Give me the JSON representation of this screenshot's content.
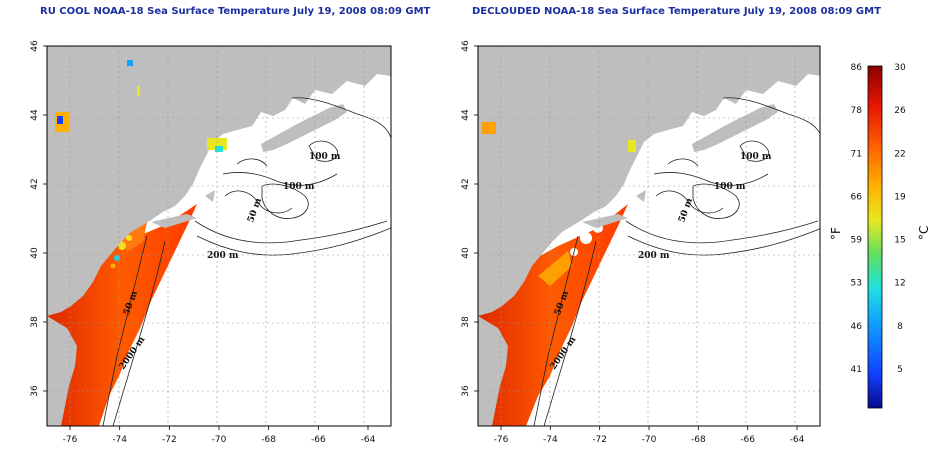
{
  "panels": [
    {
      "title": "RU COOL NOAA-18 Sea Surface Temperature July 19, 2008 08:09 GMT",
      "contour_labels": [
        "100 m",
        "100 m",
        "50 m",
        "200 m",
        "50 m",
        "2000 m"
      ]
    },
    {
      "title": "DECLOUDED NOAA-18 Sea Surface Temperature July 19, 2008 08:09 GMT",
      "contour_labels": [
        "100 m",
        "100 m",
        "50 m",
        "200 m",
        "50 m",
        "2000 m"
      ]
    }
  ],
  "axes": {
    "x_ticks": [
      "-76",
      "-74",
      "-72",
      "-70",
      "-68",
      "-66",
      "-64"
    ],
    "y_ticks": [
      "36",
      "38",
      "40",
      "42",
      "44",
      "46"
    ]
  },
  "colorbar": {
    "unit_left": "°F",
    "unit_right": "°C",
    "fahrenheit_ticks": [
      "86",
      "78",
      "71",
      "66",
      "59",
      "53",
      "46",
      "41"
    ],
    "celsius_ticks": [
      "30",
      "26",
      "22",
      "19",
      "15",
      "12",
      "8",
      "5"
    ],
    "colors": [
      "#0a0a8a",
      "#1040ff",
      "#10a0ff",
      "#20e0e0",
      "#60e060",
      "#e8e820",
      "#ffb000",
      "#ff6a00",
      "#e81800",
      "#8a0000"
    ]
  },
  "colors": {
    "land": "#bebebe",
    "ocean": "#ffffff",
    "sst_warm": "#ff4a00"
  }
}
